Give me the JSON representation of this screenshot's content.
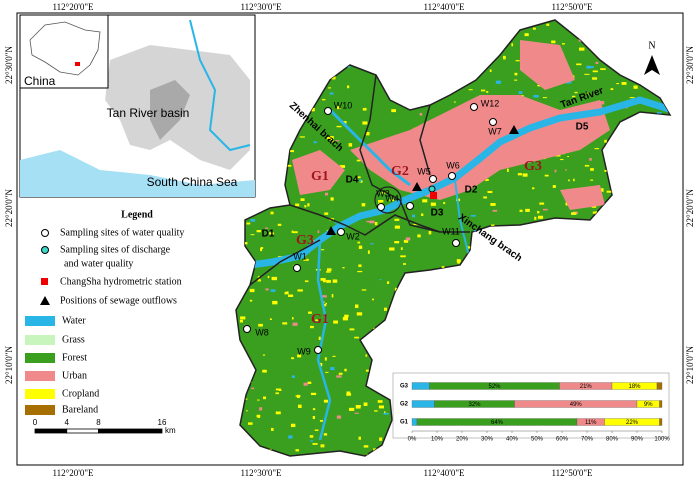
{
  "graticule": {
    "top": [
      "112°20'0\"E",
      "112°30'0\"E",
      "112°40'0\"E",
      "112°50'0\"E"
    ],
    "bottom": [
      "112°20'0\"E",
      "112°30'0\"E",
      "112°40'0\"E",
      "112°50'0\"E"
    ],
    "left": [
      "22°30'0\"N",
      "22°20'0\"N",
      "22°10'0\"N"
    ],
    "right": [
      "22°30'0\"N",
      "22°20'0\"N",
      "22°10'0\"N"
    ]
  },
  "inset": {
    "country": "China",
    "basin": "Tan River basin",
    "sea": "South China Sea"
  },
  "legend": {
    "title": "Legend",
    "symbols": [
      {
        "lines": [
          "Sampling sites of water quality"
        ]
      },
      {
        "lines": [
          "Sampling sites of discharge",
          "and water quality"
        ]
      },
      {
        "lines": [
          "ChangSha hydrometric station"
        ]
      },
      {
        "lines": [
          "Positions of sewage outflows"
        ]
      }
    ]
  },
  "scale_bar": {
    "ticks": [
      0,
      4,
      8,
      16
    ],
    "unit": "km"
  },
  "north": "N",
  "sites": [
    "W1",
    "W2",
    "W3",
    "W4",
    "W5",
    "W6",
    "W7",
    "W8",
    "W9",
    "W10",
    "W11",
    "W12"
  ],
  "sections": [
    "D1",
    "D2",
    "D3",
    "D4",
    "D5"
  ],
  "zones": [
    "G1",
    "G2",
    "G3",
    "G3",
    "G1"
  ],
  "branches": [
    "Zhenhai brach",
    "Xinchang brach",
    "Tan River"
  ],
  "chart_data": {
    "type": "bar",
    "orientation": "horizontal",
    "stacked": true,
    "categories": [
      "G3",
      "G2",
      "G1"
    ],
    "series": [
      {
        "name": "Water",
        "color": "#29b6e6",
        "values": [
          7,
          9,
          2
        ],
        "value_labels": [
          null,
          null,
          null
        ]
      },
      {
        "name": "Grass",
        "color": "#c8f5bc",
        "values": [
          0,
          0,
          0
        ],
        "value_labels": [
          null,
          null,
          null
        ]
      },
      {
        "name": "Forest",
        "color": "#3a9f1e",
        "values": [
          52,
          32,
          64
        ],
        "value_labels": [
          "52%",
          "32%",
          "64%"
        ]
      },
      {
        "name": "Urban",
        "color": "#f08a8a",
        "values": [
          21,
          49,
          11
        ],
        "value_labels": [
          "21%",
          "49%",
          "11%"
        ]
      },
      {
        "name": "Cropland",
        "color": "#ffff00",
        "values": [
          18,
          9,
          22
        ],
        "value_labels": [
          "18%",
          "9%",
          "22%"
        ]
      },
      {
        "name": "Bareland",
        "color": "#a66f00",
        "values": [
          2,
          1,
          1
        ],
        "value_labels": [
          null,
          null,
          null
        ]
      }
    ],
    "xlim": [
      0,
      100
    ],
    "xticks": [
      {
        "value": 0,
        "label": "0%"
      },
      {
        "value": 10,
        "label": "10%"
      },
      {
        "value": 20,
        "label": "20%"
      },
      {
        "value": 30,
        "label": "30%"
      },
      {
        "value": 40,
        "label": "40%"
      },
      {
        "value": 50,
        "label": "50%"
      },
      {
        "value": 60,
        "label": "60%"
      },
      {
        "value": 70,
        "label": "70%"
      },
      {
        "value": 80,
        "label": "80%"
      },
      {
        "value": 90,
        "label": "90%"
      },
      {
        "value": 100,
        "label": "100%"
      }
    ]
  }
}
